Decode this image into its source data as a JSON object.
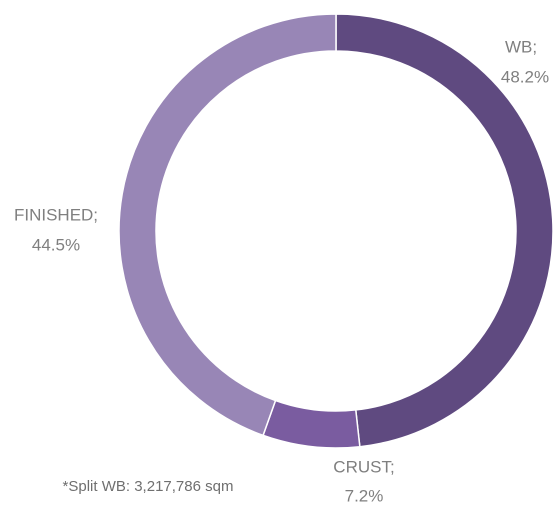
{
  "chart_data": {
    "type": "donut",
    "categories": [
      "WB;",
      "CRUST;",
      "FINISHED;"
    ],
    "values": [
      48.2,
      7.2,
      44.5
    ],
    "value_labels": [
      "48.2%",
      "7.2%",
      "44.5%"
    ],
    "colors": [
      "#5f4a80",
      "#7a5ca0",
      "#9886b6"
    ],
    "annotation": "*Split WB: 3,217,786 sqm"
  }
}
